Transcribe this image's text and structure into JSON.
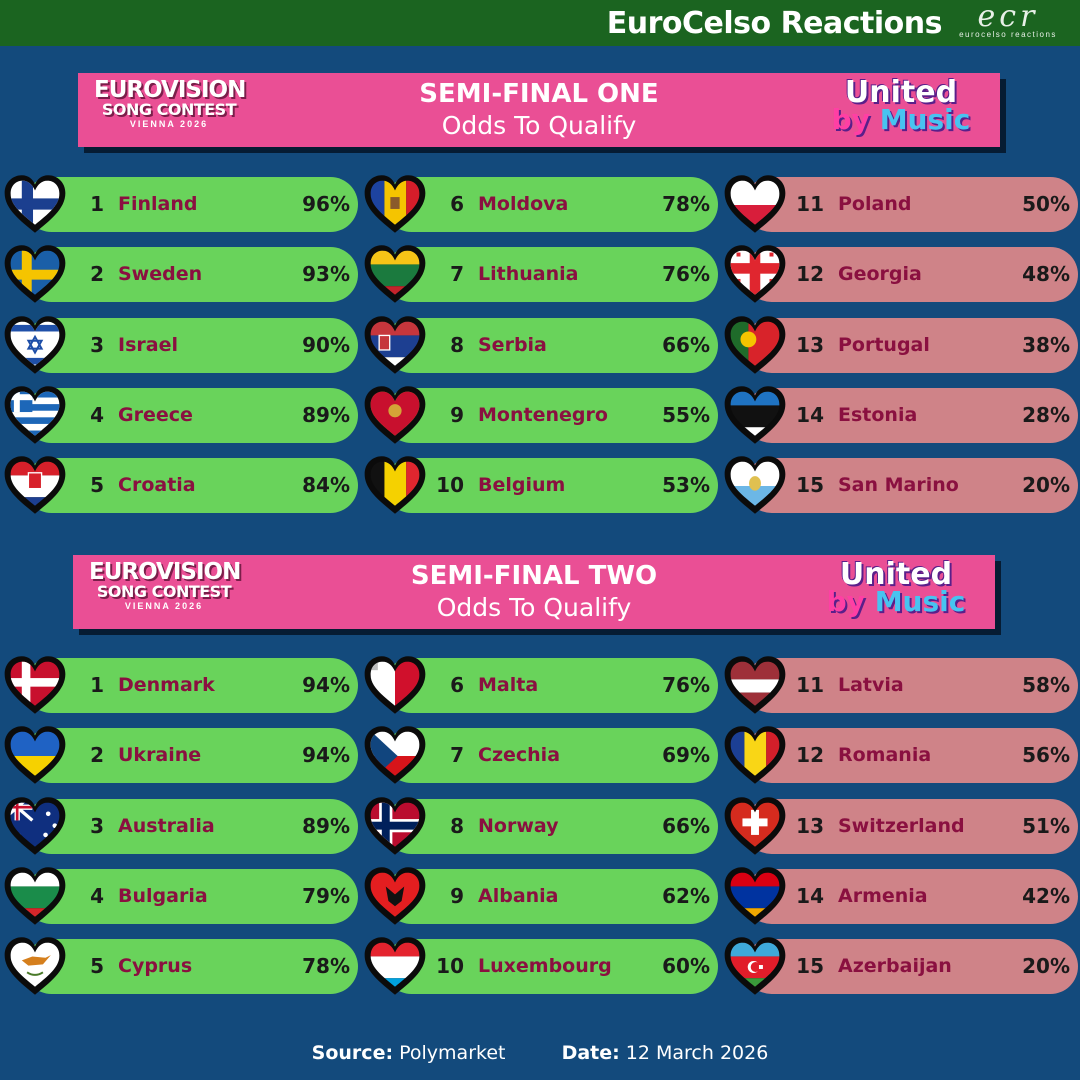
{
  "header": {
    "brand": "EuroCelso Reactions",
    "mark": "ecr",
    "mark_sub": "eurocelso reactions"
  },
  "logos": {
    "esc_line1": "EUROVISION",
    "esc_line2": "SONG CONTEST",
    "esc_line3": "VIENNA 2026",
    "ubm_line1": "United",
    "ubm_by": "by ",
    "ubm_music": "Music"
  },
  "semi1": {
    "title": "SEMI-FINAL ONE",
    "subtitle": "Odds To Qualify",
    "entries": [
      {
        "rank": "1",
        "country": "Finland",
        "pct": "96%",
        "flag": "finland",
        "qualify": true
      },
      {
        "rank": "2",
        "country": "Sweden",
        "pct": "93%",
        "flag": "sweden",
        "qualify": true
      },
      {
        "rank": "3",
        "country": "Israel",
        "pct": "90%",
        "flag": "israel",
        "qualify": true
      },
      {
        "rank": "4",
        "country": "Greece",
        "pct": "89%",
        "flag": "greece",
        "qualify": true
      },
      {
        "rank": "5",
        "country": "Croatia",
        "pct": "84%",
        "flag": "croatia",
        "qualify": true
      },
      {
        "rank": "6",
        "country": "Moldova",
        "pct": "78%",
        "flag": "moldova",
        "qualify": true
      },
      {
        "rank": "7",
        "country": "Lithuania",
        "pct": "76%",
        "flag": "lithuania",
        "qualify": true
      },
      {
        "rank": "8",
        "country": "Serbia",
        "pct": "66%",
        "flag": "serbia",
        "qualify": true
      },
      {
        "rank": "9",
        "country": "Montenegro",
        "pct": "55%",
        "flag": "montenegro",
        "qualify": true
      },
      {
        "rank": "10",
        "country": "Belgium",
        "pct": "53%",
        "flag": "belgium",
        "qualify": true
      },
      {
        "rank": "11",
        "country": "Poland",
        "pct": "50%",
        "flag": "poland",
        "qualify": false
      },
      {
        "rank": "12",
        "country": "Georgia",
        "pct": "48%",
        "flag": "georgia",
        "qualify": false
      },
      {
        "rank": "13",
        "country": "Portugal",
        "pct": "38%",
        "flag": "portugal",
        "qualify": false
      },
      {
        "rank": "14",
        "country": "Estonia",
        "pct": "28%",
        "flag": "estonia",
        "qualify": false
      },
      {
        "rank": "15",
        "country": "San Marino",
        "pct": "20%",
        "flag": "sanmarino",
        "qualify": false
      }
    ]
  },
  "semi2": {
    "title": "SEMI-FINAL TWO",
    "subtitle": "Odds To Qualify",
    "entries": [
      {
        "rank": "1",
        "country": "Denmark",
        "pct": "94%",
        "flag": "denmark",
        "qualify": true
      },
      {
        "rank": "2",
        "country": "Ukraine",
        "pct": "94%",
        "flag": "ukraine",
        "qualify": true
      },
      {
        "rank": "3",
        "country": "Australia",
        "pct": "89%",
        "flag": "australia",
        "qualify": true
      },
      {
        "rank": "4",
        "country": "Bulgaria",
        "pct": "79%",
        "flag": "bulgaria",
        "qualify": true
      },
      {
        "rank": "5",
        "country": "Cyprus",
        "pct": "78%",
        "flag": "cyprus",
        "qualify": true
      },
      {
        "rank": "6",
        "country": "Malta",
        "pct": "76%",
        "flag": "malta",
        "qualify": true
      },
      {
        "rank": "7",
        "country": "Czechia",
        "pct": "69%",
        "flag": "czechia",
        "qualify": true
      },
      {
        "rank": "8",
        "country": "Norway",
        "pct": "66%",
        "flag": "norway",
        "qualify": true
      },
      {
        "rank": "9",
        "country": "Albania",
        "pct": "62%",
        "flag": "albania",
        "qualify": true
      },
      {
        "rank": "10",
        "country": "Luxembourg",
        "pct": "60%",
        "flag": "luxembourg",
        "qualify": true
      },
      {
        "rank": "11",
        "country": "Latvia",
        "pct": "58%",
        "flag": "latvia",
        "qualify": false
      },
      {
        "rank": "12",
        "country": "Romania",
        "pct": "56%",
        "flag": "romania",
        "qualify": false
      },
      {
        "rank": "13",
        "country": "Switzerland",
        "pct": "51%",
        "flag": "switzerland",
        "qualify": false
      },
      {
        "rank": "14",
        "country": "Armenia",
        "pct": "42%",
        "flag": "armenia",
        "qualify": false
      },
      {
        "rank": "15",
        "country": "Azerbaijan",
        "pct": "20%",
        "flag": "azerbaijan",
        "qualify": false
      }
    ]
  },
  "footer": {
    "source_label": "Source:",
    "source_value": "Polymarket",
    "date_label": "Date:",
    "date_value": "12 March 2026"
  },
  "colors": {
    "background": "#134a7c",
    "topbar": "#1b6420",
    "banner": "#ea4f95",
    "qualify": "#69d35b",
    "non_qualify": "#cf8388",
    "country_text": "#8a1040"
  }
}
